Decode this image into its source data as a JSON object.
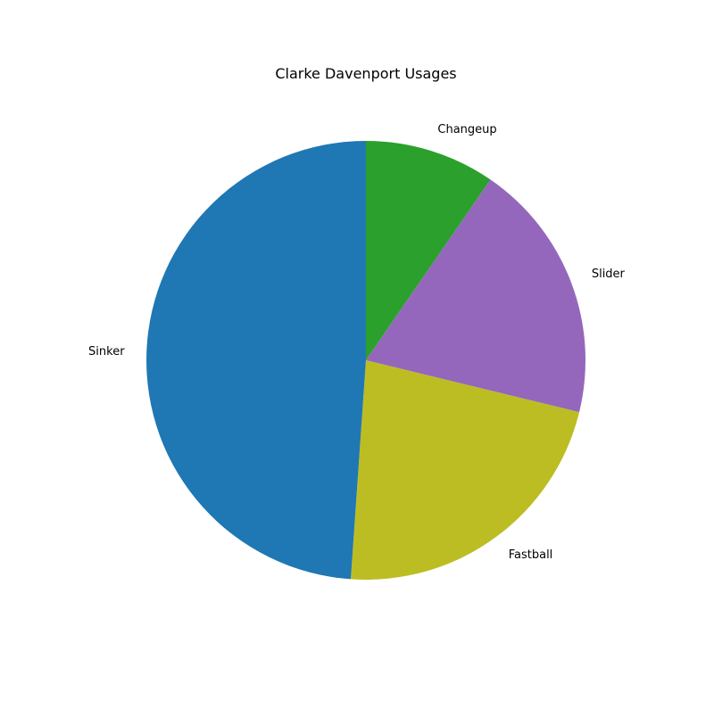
{
  "chart_data": {
    "type": "pie",
    "title": "Clarke Davenport Usages",
    "categories": [
      "Changeup",
      "Slider",
      "Fastball",
      "Sinker"
    ],
    "values": [
      9.6,
      19.2,
      22.3,
      48.9
    ],
    "colors": [
      "#2ca02c",
      "#9467bd",
      "#bcbd22",
      "#1f77b4"
    ],
    "start_angle": "top",
    "direction": "clockwise",
    "legend": "none",
    "labels_outside": true
  }
}
